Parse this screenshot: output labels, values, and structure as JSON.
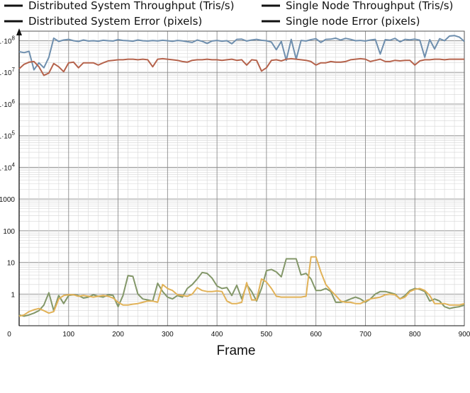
{
  "chart_data": {
    "type": "line",
    "title": "",
    "xlabel": "Frame",
    "ylabel": "",
    "yscale": "log",
    "xlim": [
      0,
      900
    ],
    "ylim": [
      0.1,
      200000000
    ],
    "grid": true,
    "legend_position": "top",
    "x_ticks": [
      "0",
      "100",
      "200",
      "300",
      "400",
      "500",
      "600",
      "700",
      "800",
      "900"
    ],
    "y_ticks": [
      {
        "value": 1,
        "label": "1"
      },
      {
        "value": 10,
        "label": "10"
      },
      {
        "value": 100,
        "label": "100"
      },
      {
        "value": 1000,
        "label": "1000"
      },
      {
        "value": 10000,
        "label": "1·10"
      },
      {
        "value": 100000,
        "label": "1·10"
      },
      {
        "value": 1000000,
        "label": "1·10"
      },
      {
        "value": 10000000,
        "label": "1·10"
      },
      {
        "value": 100000000,
        "label": "1·10"
      }
    ],
    "y_tick_exponents": [
      "",
      "",
      "",
      "",
      "4",
      "5",
      "6",
      "7",
      "8"
    ],
    "series": [
      {
        "name": "Distributed System Throughput (Tris/s)",
        "color": "#6f8fae",
        "x": [
          0,
          10,
          20,
          30,
          40,
          50,
          60,
          70,
          80,
          90,
          100,
          110,
          120,
          130,
          140,
          150,
          160,
          170,
          180,
          190,
          200,
          210,
          220,
          230,
          240,
          250,
          260,
          270,
          280,
          290,
          300,
          310,
          320,
          330,
          340,
          350,
          360,
          370,
          380,
          390,
          400,
          410,
          420,
          430,
          440,
          450,
          460,
          470,
          480,
          490,
          500,
          510,
          520,
          530,
          540,
          550,
          560,
          570,
          580,
          590,
          600,
          610,
          620,
          630,
          640,
          650,
          660,
          670,
          680,
          690,
          700,
          710,
          720,
          730,
          740,
          750,
          760,
          770,
          780,
          790,
          800,
          810,
          820,
          830,
          840,
          850,
          860,
          870,
          880,
          890,
          900
        ],
        "y": [
          45000000,
          42000000,
          46000000,
          12000000,
          20000000,
          14000000,
          30000000,
          120000000,
          95000000,
          105000000,
          110000000,
          100000000,
          95000000,
          105000000,
          98000000,
          100000000,
          97000000,
          103000000,
          100000000,
          98000000,
          108000000,
          102000000,
          100000000,
          97000000,
          105000000,
          100000000,
          98000000,
          101000000,
          99000000,
          103000000,
          100000000,
          96000000,
          102000000,
          99000000,
          93000000,
          88000000,
          105000000,
          96000000,
          82000000,
          98000000,
          102000000,
          97000000,
          100000000,
          80000000,
          110000000,
          112000000,
          98000000,
          105000000,
          110000000,
          103000000,
          100000000,
          90000000,
          52000000,
          95000000,
          24000000,
          110000000,
          26000000,
          102000000,
          98000000,
          108000000,
          115000000,
          88000000,
          110000000,
          112000000,
          120000000,
          105000000,
          118000000,
          110000000,
          100000000,
          102000000,
          98000000,
          105000000,
          110000000,
          38000000,
          108000000,
          104000000,
          118000000,
          92000000,
          110000000,
          106000000,
          112000000,
          104000000,
          30000000,
          108000000,
          55000000,
          115000000,
          100000000,
          140000000,
          145000000,
          130000000,
          95000000
        ]
      },
      {
        "name": "Single Node Throughput (Tris/s)",
        "color": "#b5634c",
        "x": [
          0,
          10,
          20,
          30,
          40,
          50,
          60,
          70,
          80,
          90,
          100,
          110,
          120,
          130,
          140,
          150,
          160,
          170,
          180,
          190,
          200,
          210,
          220,
          230,
          240,
          250,
          260,
          270,
          280,
          290,
          300,
          310,
          320,
          330,
          340,
          350,
          360,
          370,
          380,
          390,
          400,
          410,
          420,
          430,
          440,
          450,
          460,
          470,
          480,
          490,
          500,
          510,
          520,
          530,
          540,
          550,
          560,
          570,
          580,
          590,
          600,
          610,
          620,
          630,
          640,
          650,
          660,
          670,
          680,
          690,
          700,
          710,
          720,
          730,
          740,
          750,
          760,
          770,
          780,
          790,
          800,
          810,
          820,
          830,
          840,
          850,
          860,
          870,
          880,
          890,
          900
        ],
        "y": [
          13000000,
          18000000,
          21000000,
          22000000,
          15000000,
          8000000,
          9500000,
          19000000,
          15000000,
          10500000,
          20000000,
          21000000,
          14000000,
          20000000,
          20000000,
          20000000,
          17000000,
          20000000,
          23000000,
          24000000,
          25000000,
          25000000,
          26000000,
          26000000,
          25000000,
          26000000,
          25000000,
          15000000,
          26000000,
          27000000,
          26000000,
          25000000,
          24000000,
          22000000,
          21000000,
          24000000,
          25000000,
          25000000,
          26000000,
          25000000,
          25000000,
          24000000,
          25000000,
          26000000,
          24000000,
          25000000,
          17000000,
          25000000,
          24000000,
          11000000,
          14000000,
          24000000,
          25000000,
          23000000,
          26000000,
          27000000,
          26000000,
          25000000,
          24000000,
          22000000,
          17000000,
          20000000,
          20000000,
          22000000,
          21000000,
          21000000,
          22000000,
          25000000,
          26000000,
          27000000,
          26000000,
          22000000,
          24000000,
          26000000,
          22000000,
          22000000,
          24000000,
          23000000,
          24000000,
          24000000,
          17000000,
          23000000,
          25000000,
          25000000,
          26000000,
          26000000,
          25000000,
          26000000,
          26000000,
          26000000,
          26000000
        ]
      },
      {
        "name": "Distributed System Error (pixels)",
        "color": "#839769",
        "x": [
          0,
          10,
          20,
          30,
          40,
          50,
          60,
          70,
          80,
          90,
          100,
          110,
          120,
          130,
          140,
          150,
          160,
          170,
          180,
          190,
          200,
          210,
          220,
          230,
          240,
          250,
          260,
          270,
          280,
          290,
          300,
          310,
          320,
          330,
          340,
          350,
          360,
          370,
          380,
          390,
          400,
          410,
          420,
          430,
          440,
          450,
          460,
          470,
          480,
          490,
          500,
          510,
          520,
          530,
          540,
          550,
          560,
          570,
          580,
          590,
          600,
          610,
          620,
          630,
          640,
          650,
          660,
          670,
          680,
          690,
          700,
          710,
          720,
          730,
          740,
          750,
          760,
          770,
          780,
          790,
          800,
          810,
          820,
          830,
          840,
          850,
          860,
          870,
          880,
          890,
          900
        ],
        "y": [
          0.22,
          0.2,
          0.22,
          0.25,
          0.3,
          0.45,
          1.1,
          0.3,
          0.9,
          0.5,
          0.9,
          0.95,
          0.9,
          0.75,
          0.8,
          0.95,
          0.85,
          0.8,
          0.95,
          0.9,
          0.4,
          0.9,
          3.8,
          3.6,
          1.0,
          0.7,
          0.65,
          0.6,
          2.2,
          1.2,
          0.8,
          0.7,
          0.9,
          0.8,
          1.5,
          2.0,
          3.0,
          4.8,
          4.5,
          3.2,
          1.8,
          1.5,
          1.6,
          0.9,
          1.9,
          0.7,
          2.0,
          1.2,
          0.6,
          1.5,
          5.5,
          6.0,
          5.0,
          3.5,
          13.0,
          13.0,
          13.0,
          4.0,
          4.5,
          3.0,
          1.3,
          1.3,
          1.5,
          1.2,
          0.55,
          0.55,
          0.6,
          0.7,
          0.8,
          0.7,
          0.55,
          0.7,
          1.0,
          1.2,
          1.2,
          1.1,
          1.0,
          0.7,
          0.9,
          1.3,
          1.5,
          1.4,
          1.2,
          0.6,
          0.7,
          0.6,
          0.4,
          0.35,
          0.38,
          0.4,
          0.45
        ]
      },
      {
        "name": "Single node Error (pixels)",
        "color": "#e1b258",
        "x": [
          0,
          10,
          20,
          30,
          40,
          50,
          60,
          70,
          80,
          90,
          100,
          110,
          120,
          130,
          140,
          150,
          160,
          170,
          180,
          190,
          200,
          210,
          220,
          230,
          240,
          250,
          260,
          270,
          280,
          290,
          300,
          310,
          320,
          330,
          340,
          350,
          360,
          370,
          380,
          390,
          400,
          410,
          420,
          430,
          440,
          450,
          460,
          470,
          480,
          490,
          500,
          510,
          520,
          530,
          540,
          550,
          560,
          570,
          580,
          590,
          600,
          610,
          620,
          630,
          640,
          650,
          660,
          670,
          680,
          690,
          700,
          710,
          720,
          730,
          740,
          750,
          760,
          770,
          780,
          790,
          800,
          810,
          820,
          830,
          840,
          850,
          860,
          870,
          880,
          890,
          900
        ],
        "y": [
          0.2,
          0.22,
          0.28,
          0.32,
          0.35,
          0.3,
          0.25,
          0.28,
          0.7,
          0.9,
          0.95,
          0.95,
          0.85,
          0.9,
          0.85,
          0.8,
          0.85,
          0.9,
          0.85,
          0.75,
          0.55,
          0.45,
          0.45,
          0.48,
          0.5,
          0.55,
          0.6,
          0.6,
          0.55,
          2.0,
          1.5,
          1.3,
          0.95,
          0.9,
          0.85,
          1.0,
          1.6,
          1.3,
          1.2,
          1.2,
          1.25,
          1.2,
          0.6,
          0.5,
          0.5,
          0.55,
          2.3,
          0.65,
          0.65,
          3.0,
          2.4,
          1.5,
          0.85,
          0.8,
          0.8,
          0.8,
          0.8,
          0.8,
          0.85,
          15.0,
          15.0,
          5.0,
          2.0,
          1.3,
          0.9,
          0.6,
          0.55,
          0.55,
          0.5,
          0.5,
          0.6,
          0.7,
          0.75,
          0.8,
          0.95,
          1.0,
          0.95,
          0.7,
          0.8,
          1.2,
          1.4,
          1.5,
          1.3,
          0.9,
          0.5,
          0.5,
          0.5,
          0.45,
          0.45,
          0.45,
          0.5
        ]
      }
    ]
  }
}
